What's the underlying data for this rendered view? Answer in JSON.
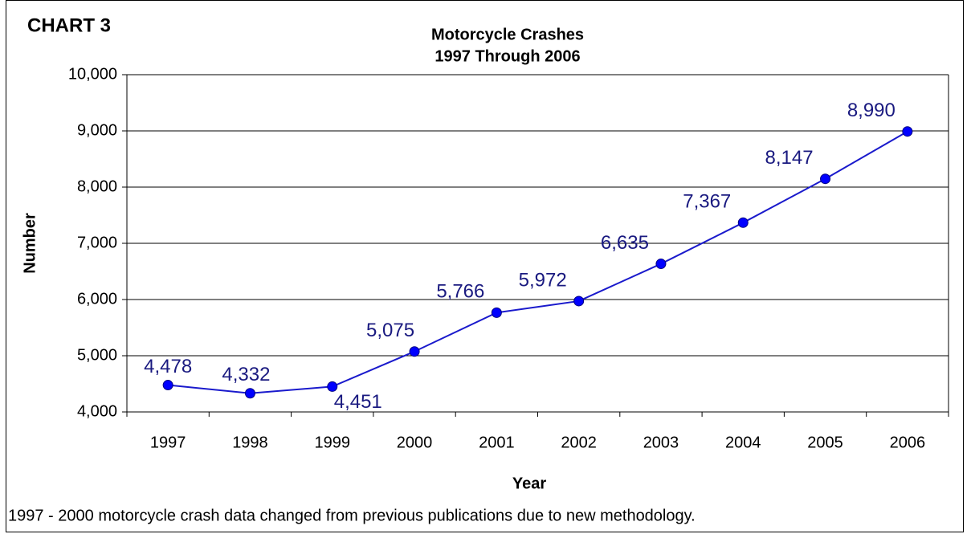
{
  "chart_data": {
    "type": "line",
    "label": "CHART 3",
    "title": "Motorcycle Crashes",
    "subtitle": "1997 Through 2006",
    "x_label": "Year",
    "y_label": "Number",
    "note": "1997 - 2000 motorcycle crash data changed from previous publications due to new methodology.",
    "categories": [
      "1997",
      "1998",
      "1999",
      "2000",
      "2001",
      "2002",
      "2003",
      "2004",
      "2005",
      "2006"
    ],
    "values": [
      4478,
      4332,
      4451,
      5075,
      5766,
      5972,
      6635,
      7367,
      8147,
      8990
    ],
    "value_labels": [
      "4,478",
      "4,332",
      "4,451",
      "5,075",
      "5,766",
      "5,972",
      "6,635",
      "7,367",
      "8,147",
      "8,990"
    ],
    "color": "#0000ff",
    "ylim": [
      4000,
      10000
    ],
    "yticks": [
      {
        "value": 4000,
        "label": "4,000"
      },
      {
        "value": 5000,
        "label": "5,000"
      },
      {
        "value": 6000,
        "label": "6,000"
      },
      {
        "value": 7000,
        "label": "7,000"
      },
      {
        "value": 8000,
        "label": "8,000"
      },
      {
        "value": 9000,
        "label": "9,000"
      },
      {
        "value": 10000,
        "label": "10,000"
      }
    ],
    "grid": true
  }
}
